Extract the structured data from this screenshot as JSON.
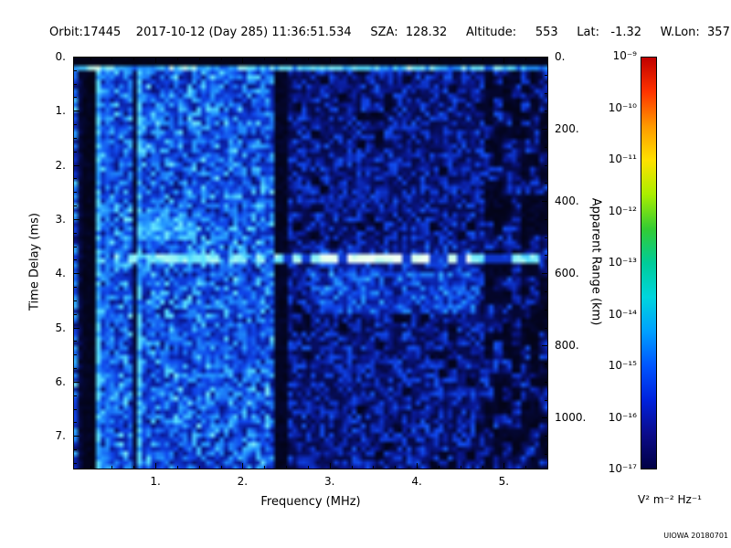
{
  "header": {
    "line": "Orbit:17445    2017-10-12 (Day 285) 11:36:51.534     SZA:  128.32     Altitude:     553     Lat:   -1.32     W.Lon:  357.17"
  },
  "footer": {
    "credit": "UIOWA 20180701"
  },
  "chart_data": {
    "type": "heatmap",
    "title": "",
    "xlabel": "Frequency (MHz)",
    "ylabel_left": "Time Delay (ms)",
    "ylabel_right": "Apparent Range (km)",
    "x_axis": {
      "unit": "MHz",
      "min": 0.055,
      "max": 5.51,
      "major_ticks": [
        1,
        2,
        3,
        4,
        5
      ],
      "tick_labels": [
        "1.",
        "2.",
        "3.",
        "4.",
        "5."
      ]
    },
    "y_axis": {
      "unit": "ms",
      "min": 0,
      "max": 7.62,
      "major_ticks": [
        0,
        1,
        2,
        3,
        4,
        5,
        6,
        7
      ],
      "tick_labels": [
        "0.",
        "1.",
        "2.",
        "3.",
        "4.",
        "5.",
        "6.",
        "7."
      ]
    },
    "right_axis": {
      "unit": "km",
      "km_per_ms": 150,
      "major_ticks": [
        0,
        200,
        400,
        600,
        800,
        1000
      ],
      "tick_labels": [
        "0.",
        "200.",
        "400.",
        "600.",
        "800.",
        "1000."
      ]
    },
    "colorbar": {
      "scale": "log",
      "min_exponent": -17,
      "max_exponent": -9,
      "tick_labels": [
        "10⁻⁹",
        "10⁻¹⁰",
        "10⁻¹¹",
        "10⁻¹²",
        "10⁻¹³",
        "10⁻¹⁴",
        "10⁻¹⁵",
        "10⁻¹⁶",
        "10⁻¹⁷"
      ],
      "units": "V² m⁻² Hz⁻¹"
    },
    "colorbar_gradient": [
      "#c00000",
      "#ff3300",
      "#ff9900",
      "#ffe100",
      "#aaee00",
      "#33cc33",
      "#00cc99",
      "#00d5dd",
      "#00a0ff",
      "#0055ff",
      "#0022dd",
      "#0b0b8a",
      "#000044"
    ],
    "heatmap_colormap": [
      [
        0.0,
        2,
        2,
        10
      ],
      [
        0.1,
        6,
        10,
        70
      ],
      [
        0.22,
        10,
        25,
        150
      ],
      [
        0.35,
        16,
        70,
        235
      ],
      [
        0.5,
        35,
        150,
        255
      ],
      [
        0.62,
        90,
        225,
        255
      ],
      [
        0.74,
        170,
        250,
        245
      ],
      [
        0.84,
        225,
        255,
        235
      ],
      [
        1.0,
        255,
        255,
        255
      ]
    ],
    "features": {
      "top_black_band_ms": 0.13,
      "transmit_pulse_ms_range": [
        0.15,
        0.28
      ],
      "ground_echo": {
        "time_delay_ms": 3.75,
        "apparent_range_km": 562,
        "freq_start_mhz": 0.55,
        "freq_end_mhz": 5.45,
        "enhanced_freq_range_mhz": [
          2.9,
          4.6
        ],
        "dashed": true
      },
      "ionospheric_echo": {
        "time_delay_ms": 3.15,
        "freq_range_mhz": [
          0.85,
          1.45
        ]
      },
      "quiet_band_mhz": [
        2.36,
        2.52
      ],
      "low_freq_stripes_below_mhz": 0.9,
      "brighter_noise_below_mhz": 2.35,
      "dark_patches_above_mhz": 4.78
    }
  }
}
